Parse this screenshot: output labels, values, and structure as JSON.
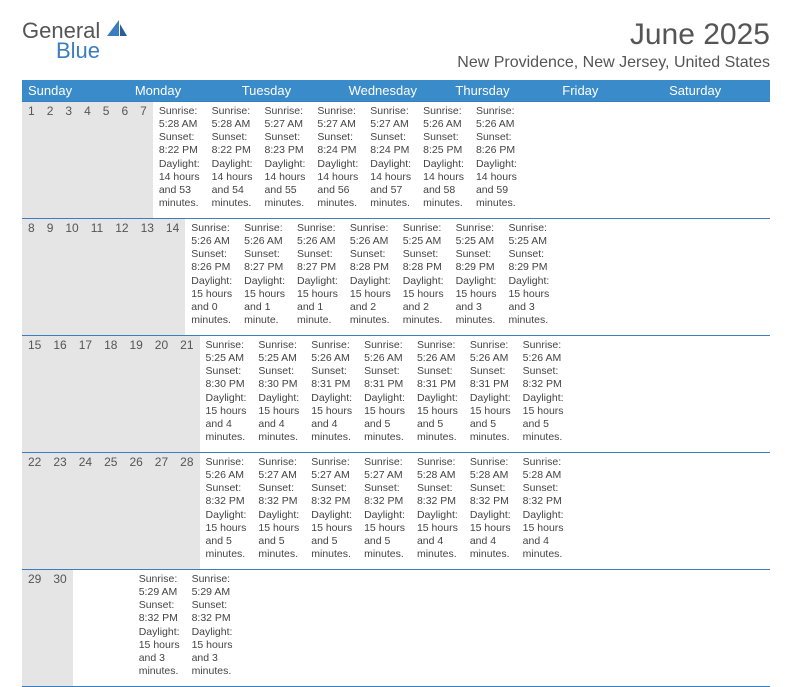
{
  "brand": {
    "part1": "General",
    "part2": "Blue"
  },
  "title": "June 2025",
  "location": "New Providence, New Jersey, United States",
  "colors": {
    "header_bg": "#3a8bc9",
    "rule": "#3a7ebf",
    "daynum_bg": "#e5e5e5",
    "text": "#444444"
  },
  "dow": [
    "Sunday",
    "Monday",
    "Tuesday",
    "Wednesday",
    "Thursday",
    "Friday",
    "Saturday"
  ],
  "weeks": [
    [
      {
        "n": "1",
        "sr": "5:28 AM",
        "ss": "8:22 PM",
        "dl": "14 hours and 53 minutes."
      },
      {
        "n": "2",
        "sr": "5:28 AM",
        "ss": "8:22 PM",
        "dl": "14 hours and 54 minutes."
      },
      {
        "n": "3",
        "sr": "5:27 AM",
        "ss": "8:23 PM",
        "dl": "14 hours and 55 minutes."
      },
      {
        "n": "4",
        "sr": "5:27 AM",
        "ss": "8:24 PM",
        "dl": "14 hours and 56 minutes."
      },
      {
        "n": "5",
        "sr": "5:27 AM",
        "ss": "8:24 PM",
        "dl": "14 hours and 57 minutes."
      },
      {
        "n": "6",
        "sr": "5:26 AM",
        "ss": "8:25 PM",
        "dl": "14 hours and 58 minutes."
      },
      {
        "n": "7",
        "sr": "5:26 AM",
        "ss": "8:26 PM",
        "dl": "14 hours and 59 minutes."
      }
    ],
    [
      {
        "n": "8",
        "sr": "5:26 AM",
        "ss": "8:26 PM",
        "dl": "15 hours and 0 minutes."
      },
      {
        "n": "9",
        "sr": "5:26 AM",
        "ss": "8:27 PM",
        "dl": "15 hours and 1 minute."
      },
      {
        "n": "10",
        "sr": "5:26 AM",
        "ss": "8:27 PM",
        "dl": "15 hours and 1 minute."
      },
      {
        "n": "11",
        "sr": "5:26 AM",
        "ss": "8:28 PM",
        "dl": "15 hours and 2 minutes."
      },
      {
        "n": "12",
        "sr": "5:25 AM",
        "ss": "8:28 PM",
        "dl": "15 hours and 2 minutes."
      },
      {
        "n": "13",
        "sr": "5:25 AM",
        "ss": "8:29 PM",
        "dl": "15 hours and 3 minutes."
      },
      {
        "n": "14",
        "sr": "5:25 AM",
        "ss": "8:29 PM",
        "dl": "15 hours and 3 minutes."
      }
    ],
    [
      {
        "n": "15",
        "sr": "5:25 AM",
        "ss": "8:30 PM",
        "dl": "15 hours and 4 minutes."
      },
      {
        "n": "16",
        "sr": "5:25 AM",
        "ss": "8:30 PM",
        "dl": "15 hours and 4 minutes."
      },
      {
        "n": "17",
        "sr": "5:26 AM",
        "ss": "8:31 PM",
        "dl": "15 hours and 4 minutes."
      },
      {
        "n": "18",
        "sr": "5:26 AM",
        "ss": "8:31 PM",
        "dl": "15 hours and 5 minutes."
      },
      {
        "n": "19",
        "sr": "5:26 AM",
        "ss": "8:31 PM",
        "dl": "15 hours and 5 minutes."
      },
      {
        "n": "20",
        "sr": "5:26 AM",
        "ss": "8:31 PM",
        "dl": "15 hours and 5 minutes."
      },
      {
        "n": "21",
        "sr": "5:26 AM",
        "ss": "8:32 PM",
        "dl": "15 hours and 5 minutes."
      }
    ],
    [
      {
        "n": "22",
        "sr": "5:26 AM",
        "ss": "8:32 PM",
        "dl": "15 hours and 5 minutes."
      },
      {
        "n": "23",
        "sr": "5:27 AM",
        "ss": "8:32 PM",
        "dl": "15 hours and 5 minutes."
      },
      {
        "n": "24",
        "sr": "5:27 AM",
        "ss": "8:32 PM",
        "dl": "15 hours and 5 minutes."
      },
      {
        "n": "25",
        "sr": "5:27 AM",
        "ss": "8:32 PM",
        "dl": "15 hours and 5 minutes."
      },
      {
        "n": "26",
        "sr": "5:28 AM",
        "ss": "8:32 PM",
        "dl": "15 hours and 4 minutes."
      },
      {
        "n": "27",
        "sr": "5:28 AM",
        "ss": "8:32 PM",
        "dl": "15 hours and 4 minutes."
      },
      {
        "n": "28",
        "sr": "5:28 AM",
        "ss": "8:32 PM",
        "dl": "15 hours and 4 minutes."
      }
    ],
    [
      {
        "n": "29",
        "sr": "5:29 AM",
        "ss": "8:32 PM",
        "dl": "15 hours and 3 minutes."
      },
      {
        "n": "30",
        "sr": "5:29 AM",
        "ss": "8:32 PM",
        "dl": "15 hours and 3 minutes."
      },
      null,
      null,
      null,
      null,
      null
    ]
  ],
  "labels": {
    "sunrise": "Sunrise:",
    "sunset": "Sunset:",
    "daylight": "Daylight:"
  }
}
